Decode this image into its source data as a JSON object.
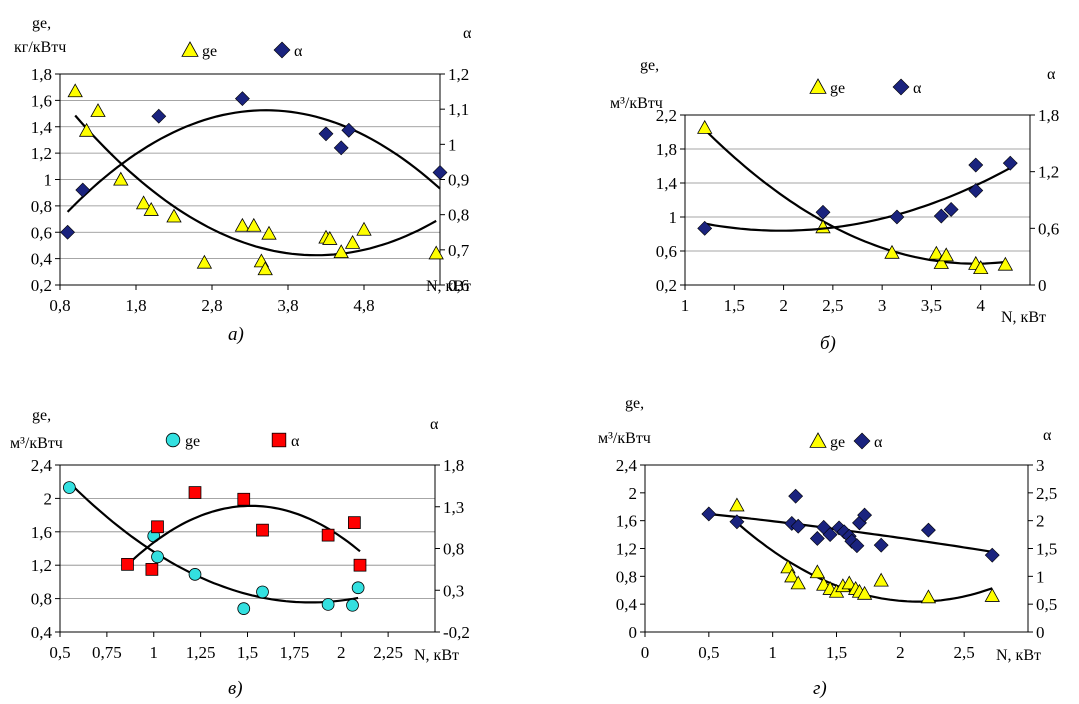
{
  "chart_data": [
    {
      "type": "scatter",
      "caption": "а)",
      "ylabel_line1": "ge,",
      "ylabel_line2": "кг/кВтч",
      "y2label": "α",
      "xlabel": "N, кВт",
      "xlim": [
        0.8,
        5.8
      ],
      "xticks": [
        "0,8",
        "1,8",
        "2,8",
        "3,8",
        "4,8"
      ],
      "ylim": [
        0.2,
        1.8
      ],
      "yticks": [
        "0,2",
        "0,4",
        "0,6",
        "0,8",
        "1",
        "1,2",
        "1,4",
        "1,6",
        "1,8"
      ],
      "y2lim": [
        0.6,
        1.2
      ],
      "y2ticks": [
        "0,6",
        "0,7",
        "0,8",
        "0,9",
        "1",
        "1,1",
        "1,2"
      ],
      "grid": true,
      "legend": "top",
      "series": [
        {
          "name": "ge",
          "axis": "left",
          "marker": "triangle",
          "color": "#ffff00",
          "x": [
            1.0,
            1.15,
            1.3,
            1.6,
            1.9,
            2.0,
            2.3,
            2.7,
            3.2,
            3.35,
            3.45,
            3.5,
            3.55,
            4.3,
            4.35,
            4.5,
            4.65,
            4.8,
            5.75
          ],
          "y": [
            1.67,
            1.37,
            1.52,
            1.0,
            0.82,
            0.77,
            0.72,
            0.37,
            0.65,
            0.65,
            0.38,
            0.32,
            0.59,
            0.56,
            0.55,
            0.45,
            0.52,
            0.62,
            0.44
          ]
        },
        {
          "name": "α",
          "axis": "right",
          "marker": "diamond",
          "color": "#1a237e",
          "x": [
            0.9,
            1.1,
            2.1,
            3.2,
            4.3,
            4.5,
            4.6,
            5.8
          ],
          "y": [
            0.75,
            0.87,
            1.08,
            1.13,
            1.03,
            0.99,
            1.04,
            0.92
          ]
        }
      ]
    },
    {
      "type": "scatter",
      "caption": "б)",
      "ylabel_line1": "ge,",
      "ylabel_line2": "м³/кВтч",
      "y2label": "α",
      "xlabel": "N, кВт",
      "xlim": [
        1,
        4.5
      ],
      "xticks": [
        "1",
        "1,5",
        "2",
        "2,5",
        "3",
        "3,5",
        "4"
      ],
      "ylim": [
        0.2,
        2.2
      ],
      "yticks": [
        "0,2",
        "0,6",
        "1",
        "1,4",
        "1,8",
        "2,2"
      ],
      "y2lim": [
        0,
        1.8
      ],
      "y2ticks": [
        "0",
        "0,6",
        "1,2",
        "1,8"
      ],
      "grid": true,
      "legend": "top",
      "series": [
        {
          "name": "ge",
          "axis": "left",
          "marker": "triangle",
          "color": "#ffff00",
          "x": [
            1.2,
            2.4,
            3.1,
            3.55,
            3.6,
            3.65,
            3.95,
            4.0,
            4.25
          ],
          "y": [
            2.05,
            0.88,
            0.58,
            0.57,
            0.46,
            0.55,
            0.45,
            0.4,
            0.44
          ]
        },
        {
          "name": "α",
          "axis": "right",
          "marker": "diamond",
          "color": "#1a237e",
          "x": [
            1.2,
            2.4,
            3.15,
            3.6,
            3.7,
            3.95,
            3.95,
            4.3
          ],
          "y": [
            0.6,
            0.77,
            0.72,
            0.73,
            0.8,
            1.0,
            1.27,
            1.29
          ]
        }
      ]
    },
    {
      "type": "scatter",
      "caption": "в)",
      "ylabel_line1": "ge,",
      "ylabel_line2": "м³/кВтч",
      "y2label": "α",
      "xlabel": "N, кВт",
      "xlim": [
        0.5,
        2.5
      ],
      "xticks": [
        "0,5",
        "0,75",
        "1",
        "1,25",
        "1,5",
        "1,75",
        "2",
        "2,25"
      ],
      "ylim": [
        0.4,
        2.4
      ],
      "yticks": [
        "0,4",
        "0,8",
        "1,2",
        "1,6",
        "2",
        "2,4"
      ],
      "y2lim": [
        -0.2,
        1.8
      ],
      "y2ticks": [
        "-0,2",
        "0,3",
        "0,8",
        "1,3",
        "1,8"
      ],
      "grid": true,
      "legend": "top",
      "series": [
        {
          "name": "ge",
          "axis": "left",
          "marker": "circle",
          "color": "#33e0e0",
          "x": [
            0.55,
            1.0,
            1.02,
            1.22,
            1.48,
            1.58,
            1.93,
            2.06,
            2.09
          ],
          "y": [
            2.13,
            1.55,
            1.3,
            1.09,
            0.68,
            0.88,
            0.73,
            0.72,
            0.93
          ]
        },
        {
          "name": "α",
          "axis": "right",
          "marker": "square",
          "color": "#ff0000",
          "x": [
            0.86,
            0.99,
            1.02,
            1.22,
            1.48,
            1.58,
            1.93,
            2.07,
            2.1
          ],
          "y": [
            0.61,
            0.55,
            1.06,
            1.47,
            1.39,
            1.02,
            0.96,
            1.11,
            0.6
          ]
        }
      ]
    },
    {
      "type": "scatter",
      "caption": "г)",
      "ylabel_line1": "ge,",
      "ylabel_line2": "м³/кВтч",
      "y2label": "α",
      "xlabel": "N, кВт",
      "xlim": [
        0,
        3
      ],
      "xticks": [
        "0",
        "0,5",
        "1",
        "1,5",
        "2",
        "2,5"
      ],
      "ylim": [
        0,
        2.4
      ],
      "yticks": [
        "0",
        "0,4",
        "0,8",
        "1,2",
        "1,6",
        "2",
        "2,4"
      ],
      "y2lim": [
        0,
        3
      ],
      "y2ticks": [
        "0",
        "0,5",
        "1",
        "1,5",
        "2",
        "2,5",
        "3"
      ],
      "grid": false,
      "legend": "top",
      "series": [
        {
          "name": "ge",
          "axis": "left",
          "marker": "triangle",
          "color": "#ffff00",
          "x": [
            0.72,
            1.12,
            1.15,
            1.2,
            1.35,
            1.4,
            1.45,
            1.5,
            1.55,
            1.6,
            1.65,
            1.68,
            1.72,
            1.85,
            2.22,
            2.72
          ],
          "y": [
            1.82,
            0.93,
            0.8,
            0.7,
            0.86,
            0.68,
            0.62,
            0.58,
            0.66,
            0.7,
            0.62,
            0.58,
            0.55,
            0.74,
            0.5,
            0.52
          ]
        },
        {
          "name": "α",
          "axis": "right",
          "marker": "diamond",
          "color": "#1a237e",
          "x": [
            0.5,
            0.72,
            1.15,
            1.18,
            1.2,
            1.35,
            1.4,
            1.45,
            1.52,
            1.56,
            1.6,
            1.62,
            1.66,
            1.68,
            1.72,
            1.85,
            2.22,
            2.72
          ],
          "y": [
            2.12,
            1.98,
            1.95,
            2.44,
            1.9,
            1.68,
            1.88,
            1.75,
            1.87,
            1.8,
            1.72,
            1.63,
            1.55,
            1.96,
            2.1,
            1.56,
            1.83,
            1.38
          ]
        }
      ]
    }
  ]
}
